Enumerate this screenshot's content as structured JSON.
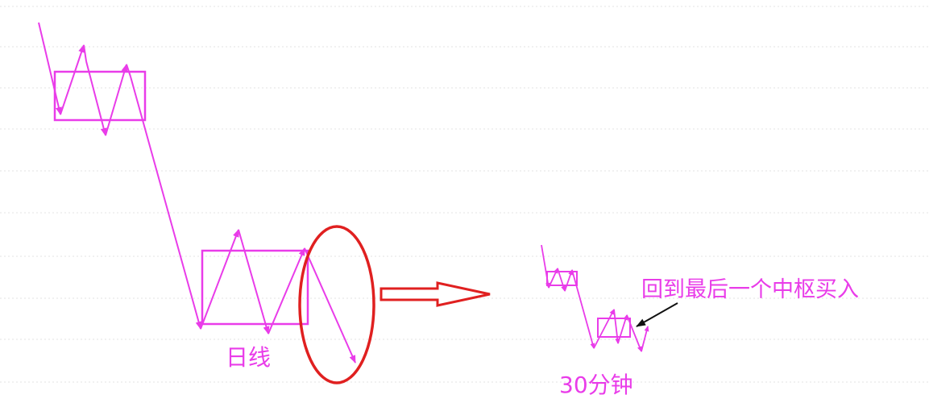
{
  "labels": {
    "daily": "日线",
    "thirty_min": "30分钟",
    "buy_note": "回到最后一个中枢买入"
  },
  "colors": {
    "stroke": "#e93ce9",
    "text": "#e93ce9",
    "highlight": "#e02020",
    "annotation_arrow": "#111111",
    "grid": "#e3e3e3"
  }
}
